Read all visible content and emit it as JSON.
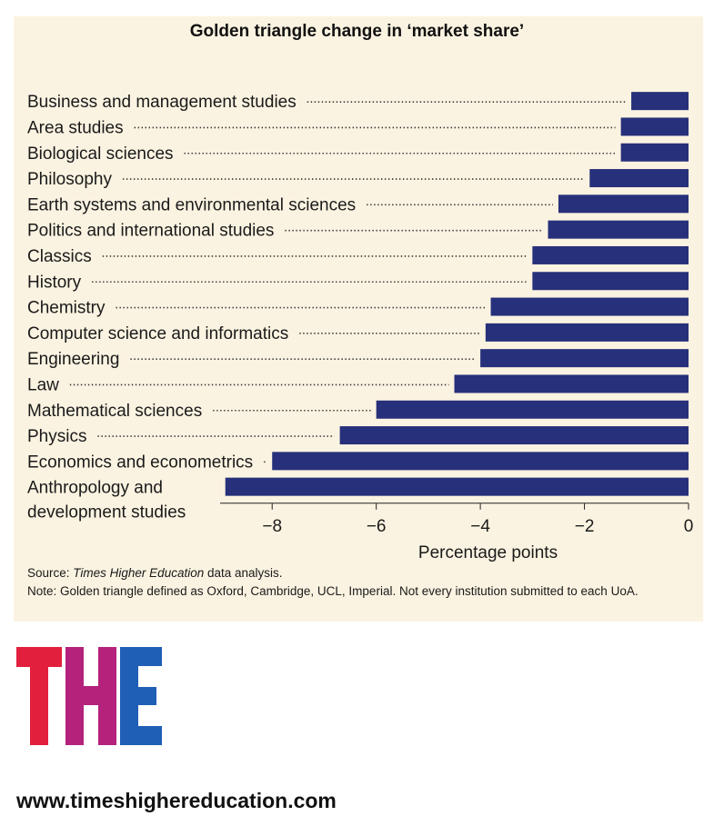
{
  "header": {
    "title": "Golden triangle change in ‘market share’"
  },
  "chart_data": {
    "type": "bar",
    "orientation": "horizontal",
    "title": "Golden triangle change in ‘market share’",
    "xlabel": "Percentage points",
    "ylabel": "",
    "xlim": [
      -9,
      0
    ],
    "xticks": [
      -8,
      -6,
      -4,
      -2,
      0
    ],
    "xtick_labels": [
      "−8",
      "−6",
      "−4",
      "−2",
      "0"
    ],
    "categories": [
      "Business and management studies",
      "Area studies",
      "Biological sciences",
      "Philosophy",
      "Earth systems and environmental sciences",
      "Politics and international studies",
      "Classics",
      "History",
      "Chemistry",
      "Computer science and informatics",
      "Engineering",
      "Law",
      "Mathematical sciences",
      "Physics",
      "Economics and econometrics",
      "Anthropology and development studies"
    ],
    "category_lines": [
      [
        "Business and management studies"
      ],
      [
        "Area studies"
      ],
      [
        "Biological sciences"
      ],
      [
        "Philosophy"
      ],
      [
        "Earth systems and environmental sciences"
      ],
      [
        "Politics and international studies"
      ],
      [
        "Classics"
      ],
      [
        "History"
      ],
      [
        "Chemistry"
      ],
      [
        "Computer science and informatics"
      ],
      [
        "Engineering"
      ],
      [
        "Law"
      ],
      [
        "Mathematical sciences"
      ],
      [
        "Physics"
      ],
      [
        "Economics and econometrics"
      ],
      [
        "Anthropology and",
        "development studies"
      ]
    ],
    "values": [
      -1.1,
      -1.3,
      -1.3,
      -1.9,
      -2.5,
      -2.7,
      -3.0,
      -3.0,
      -3.8,
      -3.9,
      -4.0,
      -4.5,
      -6.0,
      -6.7,
      -8.0,
      -8.9
    ],
    "bar_color": "#27307a",
    "grid": false
  },
  "notes": {
    "source_prefix": "Source: ",
    "source_italic": "Times Higher Education",
    "source_suffix": " data analysis.",
    "definition": "Note: Golden triangle defined as Oxford, Cambridge, UCL, Imperial. Not every institution submitted to each UoA."
  },
  "logo": {
    "letters": [
      "T",
      "H",
      "E"
    ],
    "colors": [
      "#e21f3d",
      "#b4227c",
      "#1f5fb6"
    ]
  },
  "footer": {
    "url": "www.timeshighereducation.com"
  }
}
